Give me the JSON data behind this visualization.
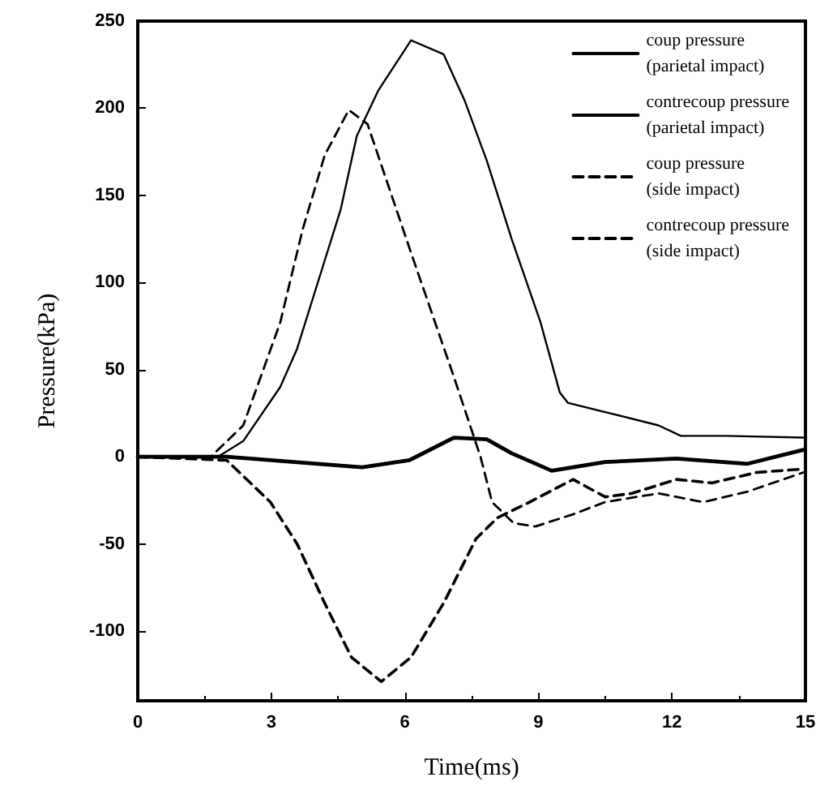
{
  "chart_data": {
    "type": "line",
    "xlabel": "Time(ms)",
    "ylabel": "Pressure(kPa)",
    "xlim": [
      0,
      15
    ],
    "xticks": [
      0,
      3,
      6,
      9,
      12,
      15
    ],
    "ylim": [
      -140,
      250
    ],
    "yticks": [
      -100,
      -50,
      0,
      50,
      100,
      150,
      200,
      250
    ],
    "grid": false,
    "legend": "top right",
    "marker": "none",
    "series": [
      {
        "name": "coup pressure\n(parietal impact)",
        "color": "#000000",
        "line_style": "solid",
        "x": [
          0,
          1.8,
          2.37,
          3.2,
          3.58,
          4.07,
          4.56,
          4.92,
          5.4,
          6.14,
          6.87,
          7.35,
          7.84,
          8.4,
          9.05,
          9.48,
          9.66,
          11.7,
          12.2,
          13.2,
          14.95
        ],
        "values": [
          0,
          0,
          9,
          40,
          62,
          102,
          142,
          184,
          210,
          239,
          231,
          204,
          170,
          125,
          77,
          37,
          31,
          18,
          12,
          12,
          11
        ]
      },
      {
        "name": "contrecoup pressure\n(parietal impact)",
        "color": "#000000",
        "line_style": "solid",
        "x": [
          0,
          2,
          5.04,
          6.1,
          7.1,
          7.84,
          8.4,
          9.3,
          10.5,
          12.1,
          13.7,
          14.95
        ],
        "values": [
          0,
          0,
          -6,
          -2,
          11,
          10,
          2,
          -8,
          -3,
          -1,
          -4,
          4
        ]
      },
      {
        "name": "coup pressure\n(side impact)",
        "color": "#000000",
        "line_style": "dashed",
        "x": [
          0,
          1.64,
          2.37,
          3.2,
          3.7,
          4.2,
          4.74,
          5.16,
          5.65,
          6.14,
          6.6,
          7.1,
          7.7,
          7.96,
          8.44,
          8.93,
          9.78,
          10.5,
          11.7,
          12.7,
          13.7,
          14.95
        ],
        "values": [
          0,
          0,
          18,
          77,
          130,
          173,
          199,
          191,
          154,
          117,
          83,
          46,
          0,
          -26,
          -38,
          -40,
          -33,
          -26,
          -21,
          -26,
          -20,
          -9
        ]
      },
      {
        "name": "contrecoup pressure\n(side impact)",
        "color": "#000000",
        "line_style": "dashed",
        "x": [
          0,
          2,
          2.98,
          3.58,
          4.2,
          4.8,
          5.47,
          6.14,
          6.87,
          7.6,
          8.08,
          8.8,
          9.78,
          10.5,
          11.1,
          12.1,
          12.9,
          13.9,
          14.95
        ],
        "values": [
          0,
          -2,
          -26,
          -50,
          -84,
          -115,
          -129,
          -115,
          -84,
          -47,
          -35,
          -26,
          -13,
          -23,
          -21,
          -13,
          -15,
          -9,
          -7
        ]
      }
    ]
  }
}
